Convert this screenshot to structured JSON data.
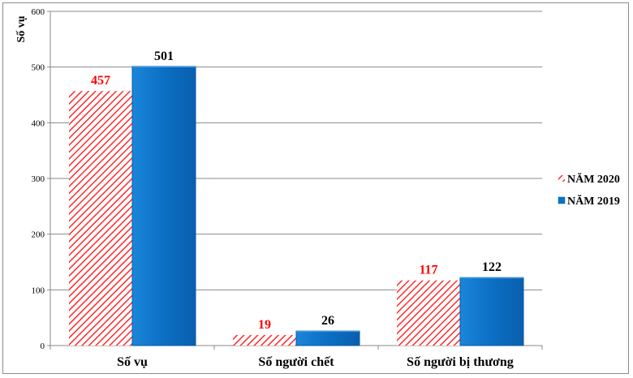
{
  "chart_data": {
    "type": "bar",
    "categories": [
      "Số vụ",
      "Số người chết",
      "Số người bị thương"
    ],
    "series": [
      {
        "name": "NĂM 2020",
        "values": [
          457,
          19,
          117
        ],
        "color": "#ff2a2a",
        "label_color": "#ff0000",
        "fill": "hatched"
      },
      {
        "name": "NĂM 2019",
        "values": [
          501,
          26,
          122
        ],
        "color": "#0b72c7",
        "label_color": "#000000",
        "fill": "solid"
      }
    ],
    "ylabel": "Số vụ",
    "xlabel": "",
    "ylim": [
      0,
      600
    ],
    "yticks": [
      0,
      100,
      200,
      300,
      400,
      500,
      600
    ],
    "grid": true,
    "legend_position": "right"
  }
}
